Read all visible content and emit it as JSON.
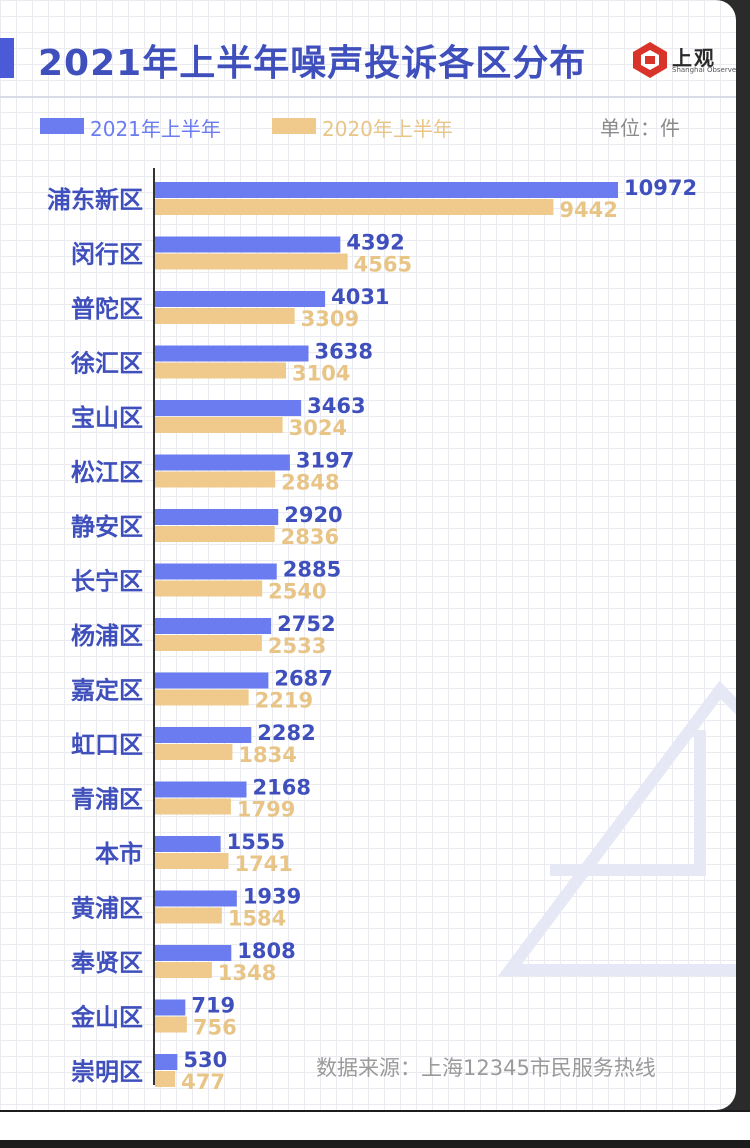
{
  "title": "2021年上半年噪声投诉各区分布",
  "logo": {
    "name": "上观",
    "subtitle": "Shanghai Observer"
  },
  "unit": "单位：件",
  "source": "数据来源：上海12345市民服务热线",
  "colors": {
    "series_2021": "#6a7cf0",
    "series_2020": "#efca8c",
    "title": "#3f4fbc",
    "label_2020": "#e8c587"
  },
  "chart_data": {
    "type": "bar",
    "orientation": "horizontal",
    "title": "2021年上半年噪声投诉各区分布",
    "unit": "件",
    "legend_placement": "top-left",
    "categories": [
      "浦东新区",
      "闵行区",
      "普陀区",
      "徐汇区",
      "宝山区",
      "松江区",
      "静安区",
      "长宁区",
      "杨浦区",
      "嘉定区",
      "虹口区",
      "青浦区",
      "本市",
      "黄浦区",
      "奉贤区",
      "金山区",
      "崇明区"
    ],
    "series": [
      {
        "name": "2021年上半年",
        "values": [
          10972,
          4392,
          4031,
          3638,
          3463,
          3197,
          2920,
          2885,
          2752,
          2687,
          2282,
          2168,
          1555,
          1939,
          1808,
          719,
          530
        ]
      },
      {
        "name": "2020年上半年",
        "values": [
          9442,
          4565,
          3309,
          3104,
          3024,
          2848,
          2836,
          2540,
          2533,
          2219,
          1834,
          1799,
          1741,
          1584,
          1348,
          756,
          477
        ]
      }
    ],
    "xlim": [
      0,
      10972
    ],
    "data_labels": true,
    "grid": false
  }
}
